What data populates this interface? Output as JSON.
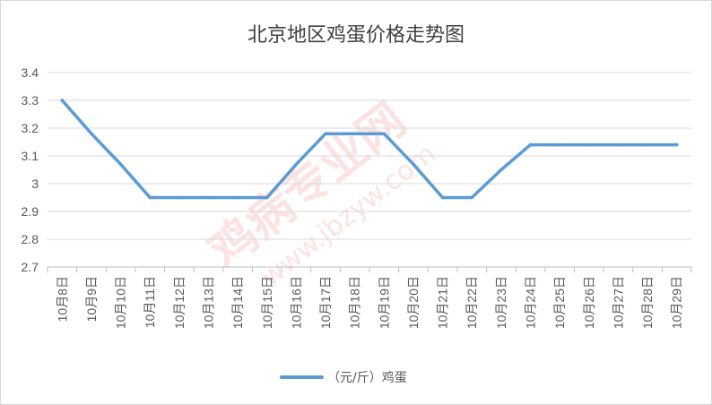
{
  "chart_data": {
    "type": "line",
    "title": "北京地区鸡蛋价格走势图",
    "xlabel": "",
    "ylabel": "",
    "categories": [
      "10月8日",
      "10月9日",
      "10月10日",
      "10月11日",
      "10月12日",
      "10月13日",
      "10月14日",
      "10月15日",
      "10月16日",
      "10月17日",
      "10月18日",
      "10月19日",
      "10月20日",
      "10月21日",
      "10月22日",
      "10月23日",
      "10月24日",
      "10月25日",
      "10月26日",
      "10月27日",
      "10月28日",
      "10月29日"
    ],
    "series": [
      {
        "name": "（元/斤）鸡蛋",
        "color": "#5b9bd5",
        "values": [
          3.3,
          3.18,
          3.07,
          2.95,
          2.95,
          2.95,
          2.95,
          2.95,
          3.07,
          3.18,
          3.18,
          3.18,
          3.07,
          2.95,
          2.95,
          3.05,
          3.14,
          3.14,
          3.14,
          3.14,
          3.14,
          3.14
        ]
      }
    ],
    "ylim": [
      2.7,
      3.4
    ],
    "yticks": [
      "2.7",
      "2.8",
      "2.9",
      "3",
      "3.1",
      "3.2",
      "3.3",
      "3.4"
    ],
    "grid": "horizontal",
    "legend_position": "bottom"
  },
  "watermark": "鸡病专业网 www.jbzyw.com"
}
